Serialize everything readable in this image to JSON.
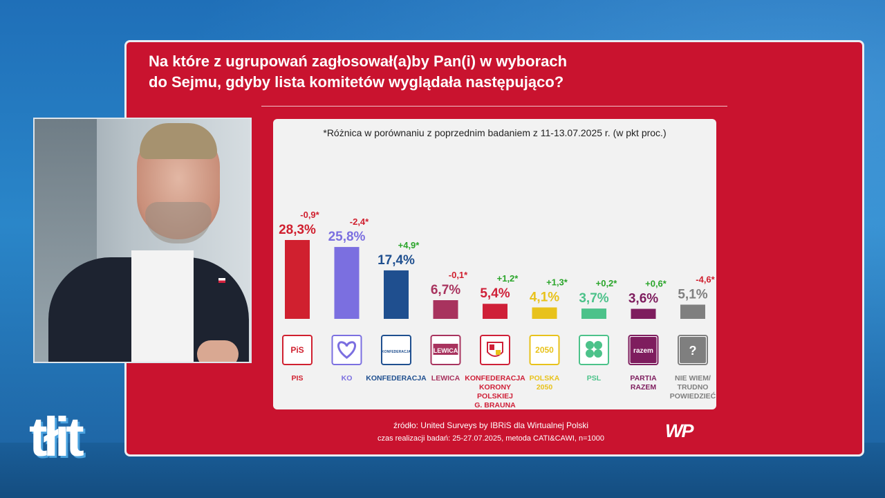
{
  "broadcast": {
    "channel_logo": "tłit"
  },
  "title": {
    "line1": "Na które z ugrupowań zagłosował(a)by Pan(i) w wyborach",
    "line2": "do Sejmu, gdyby lista komitetów wyglądała następująco?"
  },
  "note": "*Różnica w porównaniu z poprzednim badaniem z 11-13.07.2025 r. (w pkt proc.)",
  "source": {
    "line1": "źródło: United Surveys by IBRiS dla Wirtualnej Polski",
    "line2": "czas realizacji badań: 25-27.07.2025, metoda CATI&CAWI, n=1000"
  },
  "wp_logo": "WP",
  "chart_data": {
    "type": "bar",
    "title": "",
    "xlabel": "",
    "ylabel": "",
    "ylim": [
      0,
      30
    ],
    "grid": false,
    "legend": "none",
    "categories": [
      "PIS",
      "KO",
      "KONFEDERACJA",
      "LEWICA",
      "KONFEDERACJA KORONY POLSKIEJ G. BRAUNA",
      "POLSKA 2050",
      "PSL",
      "PARTIA RAZEM",
      "NIE WIEM/ TRUDNO POWIEDZIEĆ"
    ],
    "category_lines": [
      [
        "PIS"
      ],
      [
        "KO"
      ],
      [
        "KONFEDERACJA"
      ],
      [
        "LEWICA"
      ],
      [
        "KONFEDERACJA",
        "KORONY",
        "POLSKIEJ",
        "G. BRAUNA"
      ],
      [
        "POLSKA",
        "2050"
      ],
      [
        "PSL"
      ],
      [
        "PARTIA",
        "RAZEM"
      ],
      [
        "NIE WIEM/",
        "TRUDNO",
        "POWIEDZIEĆ"
      ]
    ],
    "values": [
      28.3,
      25.8,
      17.4,
      6.7,
      5.4,
      4.1,
      3.7,
      3.6,
      5.1
    ],
    "value_labels": [
      "28,3%",
      "25,8%",
      "17,4%",
      "6,7%",
      "5,4%",
      "4,1%",
      "3,7%",
      "3,6%",
      "5,1%"
    ],
    "changes": [
      -0.9,
      -2.4,
      4.9,
      -0.1,
      1.2,
      1.3,
      0.2,
      0.6,
      -4.6
    ],
    "change_labels": [
      "-0,9*",
      "-2,4*",
      "+4,9*",
      "-0,1*",
      "+1,2*",
      "+1,3*",
      "+0,2*",
      "+0,6*",
      "-4,6*"
    ],
    "colors": [
      "#d0202f",
      "#7b6fe0",
      "#1f4f8f",
      "#a8335e",
      "#cf2038",
      "#e8c21b",
      "#4cc28a",
      "#7e1d5e",
      "#7f7f7f"
    ],
    "label_colors": [
      "#d0202f",
      "#7b6fe0",
      "#1f4f8f",
      "#a8335e",
      "#cf2038",
      "#e8c21b",
      "#4cc28a",
      "#7e1d5e",
      "#7f7f7f"
    ],
    "logos": [
      "PiS",
      "heart-icon",
      "KONFEDERACJA",
      "LEWICA",
      "eagle-shield-icon",
      "2050",
      "clover-icon",
      "razem",
      "?"
    ],
    "change_colors": {
      "positive": "#2aa52a",
      "negative": "#d0202f"
    }
  }
}
